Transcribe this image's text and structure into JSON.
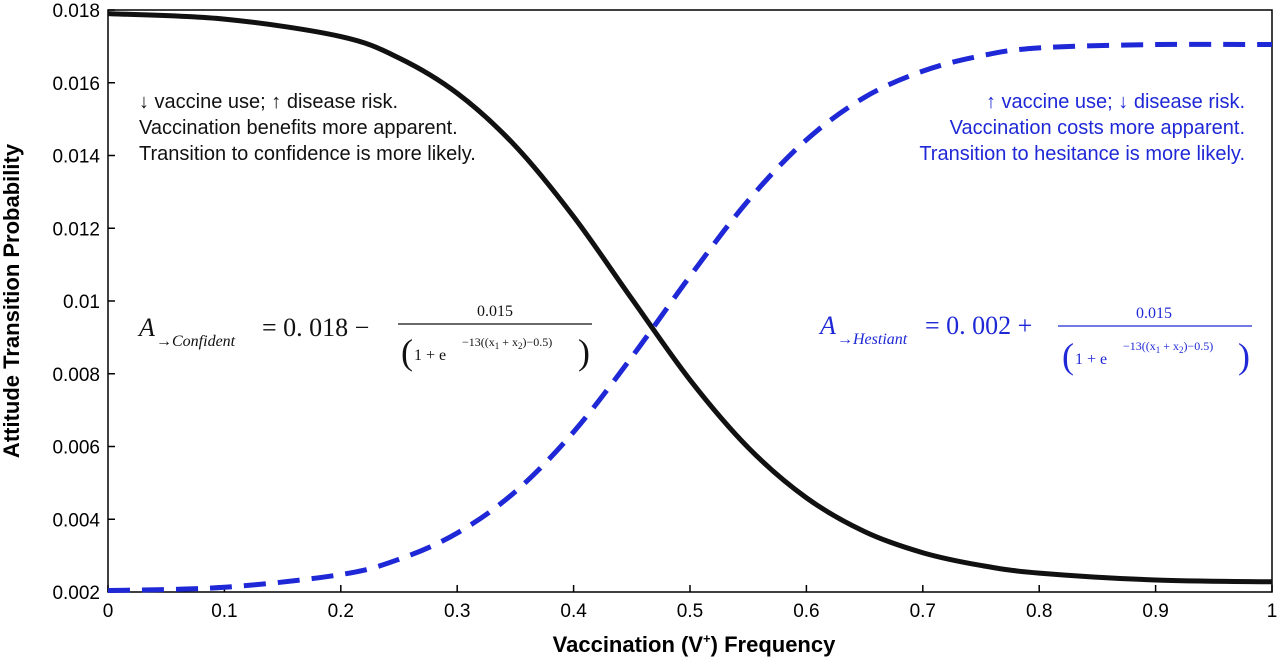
{
  "chart_data": {
    "type": "line",
    "title": "",
    "xlabel": "Vaccination (V",
    "xlabel_sup": "+",
    "xlabel_end": ") Frequency",
    "ylabel": "Attitude Transition Probability",
    "xlim": [
      0,
      1
    ],
    "ylim": [
      0.002,
      0.018
    ],
    "x_ticks": [
      "0",
      "0.1",
      "0.2",
      "0.3",
      "0.4",
      "0.5",
      "0.6",
      "0.7",
      "0.8",
      "0.9",
      "1"
    ],
    "y_ticks": [
      "0.002",
      "0.004",
      "0.006",
      "0.008",
      "0.01",
      "0.012",
      "0.014",
      "0.016",
      "0.018"
    ],
    "grid": false,
    "series": [
      {
        "color": "#111111",
        "style": "solid",
        "x": [
          0,
          0.1,
          0.2,
          0.25,
          0.3,
          0.35,
          0.4,
          0.45,
          0.5,
          0.55,
          0.6,
          0.65,
          0.7,
          0.75,
          0.8,
          0.9,
          1.0
        ],
        "y": [
          0.0179,
          0.01775,
          0.01727,
          0.01668,
          0.01571,
          0.01426,
          0.01232,
          0.01006,
          0.00783,
          0.00597,
          0.00459,
          0.00366,
          0.00308,
          0.00273,
          0.00252,
          0.00233,
          0.00228
        ]
      },
      {
        "color": "#1f28d6",
        "style": "dashed",
        "x": [
          0,
          0.1,
          0.2,
          0.25,
          0.3,
          0.35,
          0.4,
          0.45,
          0.5,
          0.55,
          0.6,
          0.65,
          0.7,
          0.75,
          0.8,
          0.9,
          1.0
        ],
        "y": [
          0.00204,
          0.00213,
          0.00248,
          0.0029,
          0.00362,
          0.00476,
          0.0064,
          0.00846,
          0.01068,
          0.01276,
          0.01443,
          0.0156,
          0.01632,
          0.01674,
          0.01696,
          0.01705,
          0.01705
        ]
      }
    ],
    "annotations": {
      "left_lines": [
        "↓ vaccine use; ↑ disease risk.",
        "Vaccination benefits more apparent.",
        "Transition to confidence is more likely."
      ],
      "right_lines": [
        "↑ vaccine use; ↓ disease risk.",
        "Vaccination costs more apparent.",
        "Transition to hesitance is more likely."
      ],
      "left_color": "#111111",
      "right_color": "#1f28d6",
      "eq_left": {
        "A": "A",
        "sub": "→Confident",
        "lhs": "= 0. 018 −",
        "numer": "0.015",
        "denom_base": "1 + e",
        "denom_exp": "−13((x",
        "x1_sub": "1",
        "plus_x": " + x",
        "x2_sub": "2",
        "exp_end": ")−0.5)"
      },
      "eq_right": {
        "A": "A",
        "sub": "→Hestiant",
        "lhs": "= 0. 002 +",
        "numer": "0.015",
        "denom_base": "1 + e",
        "denom_exp": "−13((x",
        "x1_sub": "1",
        "plus_x": " + x",
        "x2_sub": "2",
        "exp_end": ")−0.5)"
      }
    }
  }
}
